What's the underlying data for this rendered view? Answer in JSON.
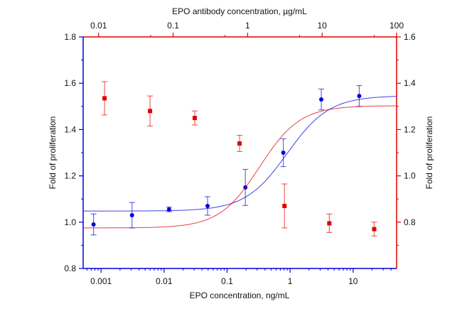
{
  "chart_data": {
    "type": "scatter",
    "title": "",
    "xlabel": "EPO  concentration, ng/mL",
    "x2label": "EPO antibody concentration, µg/mL",
    "ylabel": "Fold of proliferation",
    "y2label": "Fold of proliferation",
    "xscale": "log",
    "xlim": [
      0.00052,
      49
    ],
    "x2lim": [
      0.0062,
      100
    ],
    "ylim": [
      0.8,
      1.8
    ],
    "y2lim": [
      0.6,
      1.6
    ],
    "xticks": [
      "0.001",
      "0.01",
      "0.1",
      "1",
      "10"
    ],
    "x2ticks": [
      "0.01",
      "0.1",
      "1",
      "10",
      "100"
    ],
    "yticks": [
      "0.8",
      "1.0",
      "1.2",
      "1.4",
      "1.6",
      "1.8"
    ],
    "y2ticks": [
      "0.8",
      "1.0",
      "1.2",
      "1.4",
      "1.6"
    ],
    "grid": false,
    "series": [
      {
        "name": "EPO",
        "axis": "bottom-left",
        "color": "#0000dd",
        "marker": "circle",
        "x": [
          0.00076,
          0.0031,
          0.012,
          0.049,
          0.195,
          0.78,
          3.125,
          12.5
        ],
        "y": [
          0.99,
          1.03,
          1.055,
          1.07,
          1.15,
          1.3,
          1.53,
          1.545
        ],
        "err": [
          0.045,
          0.055,
          0.01,
          0.04,
          0.078,
          0.06,
          0.045,
          0.045
        ],
        "fit": {
          "bottom": 1.048,
          "top": 1.546,
          "ec50": 0.9,
          "hill": 1.3
        }
      },
      {
        "name": "EPO antibody",
        "axis": "top-right",
        "color": "#e00000",
        "marker": "square",
        "x": [
          0.012,
          0.049,
          0.195,
          0.78,
          3.125,
          12.5,
          50
        ],
        "y": [
          1.335,
          1.28,
          1.25,
          1.14,
          0.87,
          0.795,
          0.77
        ],
        "err": [
          0.072,
          0.065,
          0.03,
          0.035,
          0.095,
          0.04,
          0.03
        ],
        "fit": {
          "bottom": 0.775,
          "top": 1.303,
          "ec50": 1.45,
          "hill": 1.6
        }
      }
    ]
  }
}
